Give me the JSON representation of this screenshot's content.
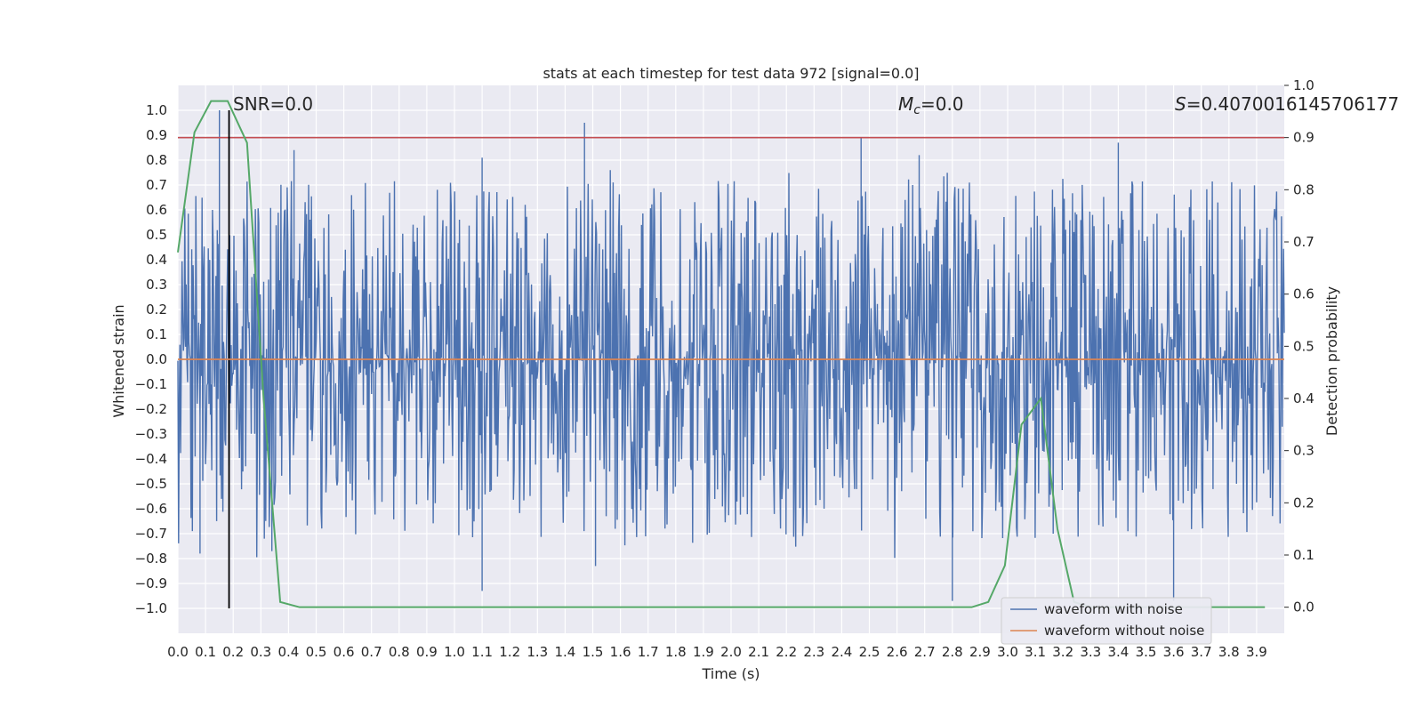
{
  "chart_data": {
    "type": "line",
    "title": "stats at each timestep for test data 972 [signal=0.0]",
    "xlabel": "Time (s)",
    "ylabel_left": "Whitened strain",
    "ylabel_right": "Detection probability",
    "xlim": [
      0.0,
      4.0
    ],
    "ylim_left": [
      -1.1,
      1.1
    ],
    "ylim_right": [
      -0.05,
      1.0
    ],
    "x_ticks": [
      "0.0",
      "0.1",
      "0.2",
      "0.3",
      "0.4",
      "0.5",
      "0.6",
      "0.7",
      "0.8",
      "0.9",
      "1.0",
      "1.1",
      "1.2",
      "1.3",
      "1.4",
      "1.5",
      "1.6",
      "1.7",
      "1.8",
      "1.9",
      "2.0",
      "2.1",
      "2.2",
      "2.3",
      "2.4",
      "2.5",
      "2.6",
      "2.7",
      "2.8",
      "2.9",
      "3.0",
      "3.1",
      "3.2",
      "3.3",
      "3.4",
      "3.5",
      "3.6",
      "3.7",
      "3.8",
      "3.9"
    ],
    "y_ticks_left": [
      "1.0",
      "0.9",
      "0.8",
      "0.7",
      "0.6",
      "0.5",
      "0.4",
      "0.3",
      "0.2",
      "0.1",
      "0.0",
      "−0.1",
      "−0.2",
      "−0.3",
      "−0.4",
      "−0.5",
      "−0.6",
      "−0.7",
      "−0.8",
      "−0.9",
      "−1.0"
    ],
    "y_ticks_right": [
      "1.0",
      "0.9",
      "0.8",
      "0.7",
      "0.6",
      "0.5",
      "0.4",
      "0.3",
      "0.2",
      "0.1",
      "0.0"
    ],
    "grid": true,
    "legend_position": "bottom-right",
    "annotations": {
      "snr": "SNR=0.0",
      "mc_symbol": "M",
      "mc_sub": "c",
      "mc_value": "=0.0",
      "s_symbol": "S",
      "s_value": "=0.4070016145706177"
    },
    "series": [
      {
        "name": "waveform with noise",
        "color": "#4c72b0",
        "axis": "left",
        "kind": "noise",
        "amplitude_envelope": [
          -0.9,
          0.95
        ],
        "notable_spikes": [
          {
            "x": 0.15,
            "y": 1.0
          },
          {
            "x": 0.08,
            "y": -0.78
          },
          {
            "x": 0.42,
            "y": 0.84
          },
          {
            "x": 1.1,
            "y": 0.81
          },
          {
            "x": 1.1,
            "y": -0.93
          },
          {
            "x": 1.47,
            "y": 0.95
          },
          {
            "x": 1.51,
            "y": -0.83
          },
          {
            "x": 2.47,
            "y": 0.89
          },
          {
            "x": 2.68,
            "y": 0.82
          },
          {
            "x": 2.8,
            "y": -0.97
          },
          {
            "x": 3.4,
            "y": 0.87
          },
          {
            "x": 3.6,
            "y": -0.97
          },
          {
            "x": 0.34,
            "y": -0.77
          }
        ]
      },
      {
        "name": "waveform without noise",
        "color": "#dd8452",
        "axis": "left",
        "x": [
          0.0,
          4.0
        ],
        "y": [
          0.0,
          0.0
        ]
      },
      {
        "color": "#55a868",
        "axis": "right",
        "x": [
          0.0,
          0.06,
          0.12,
          0.18,
          0.25,
          0.31,
          0.37,
          0.44,
          0.5,
          0.6,
          1.0,
          1.5,
          2.0,
          2.5,
          2.8,
          2.87,
          2.93,
          2.99,
          3.05,
          3.12,
          3.18,
          3.24,
          3.3,
          3.4,
          3.6,
          3.8,
          3.93
        ],
        "y": [
          0.68,
          0.91,
          0.97,
          0.97,
          0.89,
          0.4,
          0.01,
          0.0,
          0.0,
          0.0,
          0.0,
          0.0,
          0.0,
          0.0,
          0.0,
          0.0,
          0.01,
          0.08,
          0.35,
          0.4,
          0.15,
          0.01,
          0.0,
          0.0,
          0.0,
          0.0,
          0.0
        ]
      }
    ],
    "reference_lines": [
      {
        "type": "hline",
        "axis": "right",
        "value": 0.9,
        "color": "#c44e52"
      },
      {
        "type": "vline",
        "x": 0.185,
        "y_range_left": [
          -1.0,
          1.0
        ],
        "color": "#000000"
      }
    ]
  }
}
